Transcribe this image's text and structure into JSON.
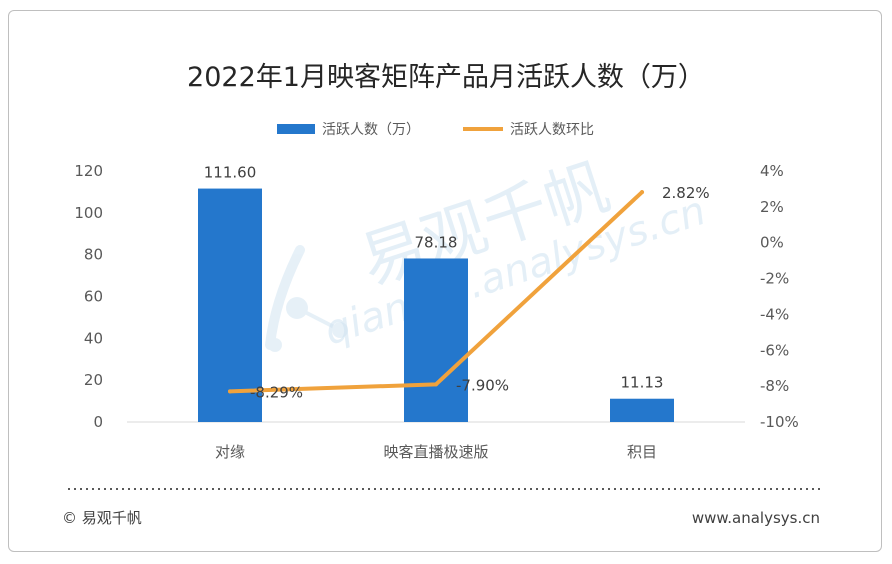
{
  "chart_data": {
    "type": "bar",
    "title": "2022年1月映客矩阵产品月活跃人数（万）",
    "categories": [
      "对缘",
      "映客直播极速版",
      "积目"
    ],
    "series": [
      {
        "name": "活跃人数（万）",
        "type": "bar",
        "axis": "left",
        "values": [
          111.6,
          78.18,
          11.13
        ],
        "labels": [
          "111.60",
          "78.18",
          "11.13"
        ],
        "color": "#2477CC"
      },
      {
        "name": "活跃人数环比",
        "type": "line",
        "axis": "right",
        "values": [
          -8.29,
          -7.9,
          2.82
        ],
        "labels": [
          "-8.29%",
          "-7.90%",
          "2.82%"
        ],
        "color": "#F0A23C"
      }
    ],
    "y_left": {
      "ylim": [
        0,
        120
      ],
      "ticks": [
        "0",
        "20",
        "40",
        "60",
        "80",
        "100",
        "120"
      ]
    },
    "y_right": {
      "ylim": [
        -10,
        4
      ],
      "ticks": [
        "-10%",
        "-8%",
        "-6%",
        "-4%",
        "-2%",
        "0%",
        "2%",
        "4%"
      ]
    },
    "grid": false,
    "legend": "top-center"
  },
  "watermark": {
    "cn": "易观千帆",
    "url": "qianfan.analysys.cn"
  },
  "footer": {
    "copyright": "© 易观千帆",
    "website": "www.analysys.cn"
  }
}
